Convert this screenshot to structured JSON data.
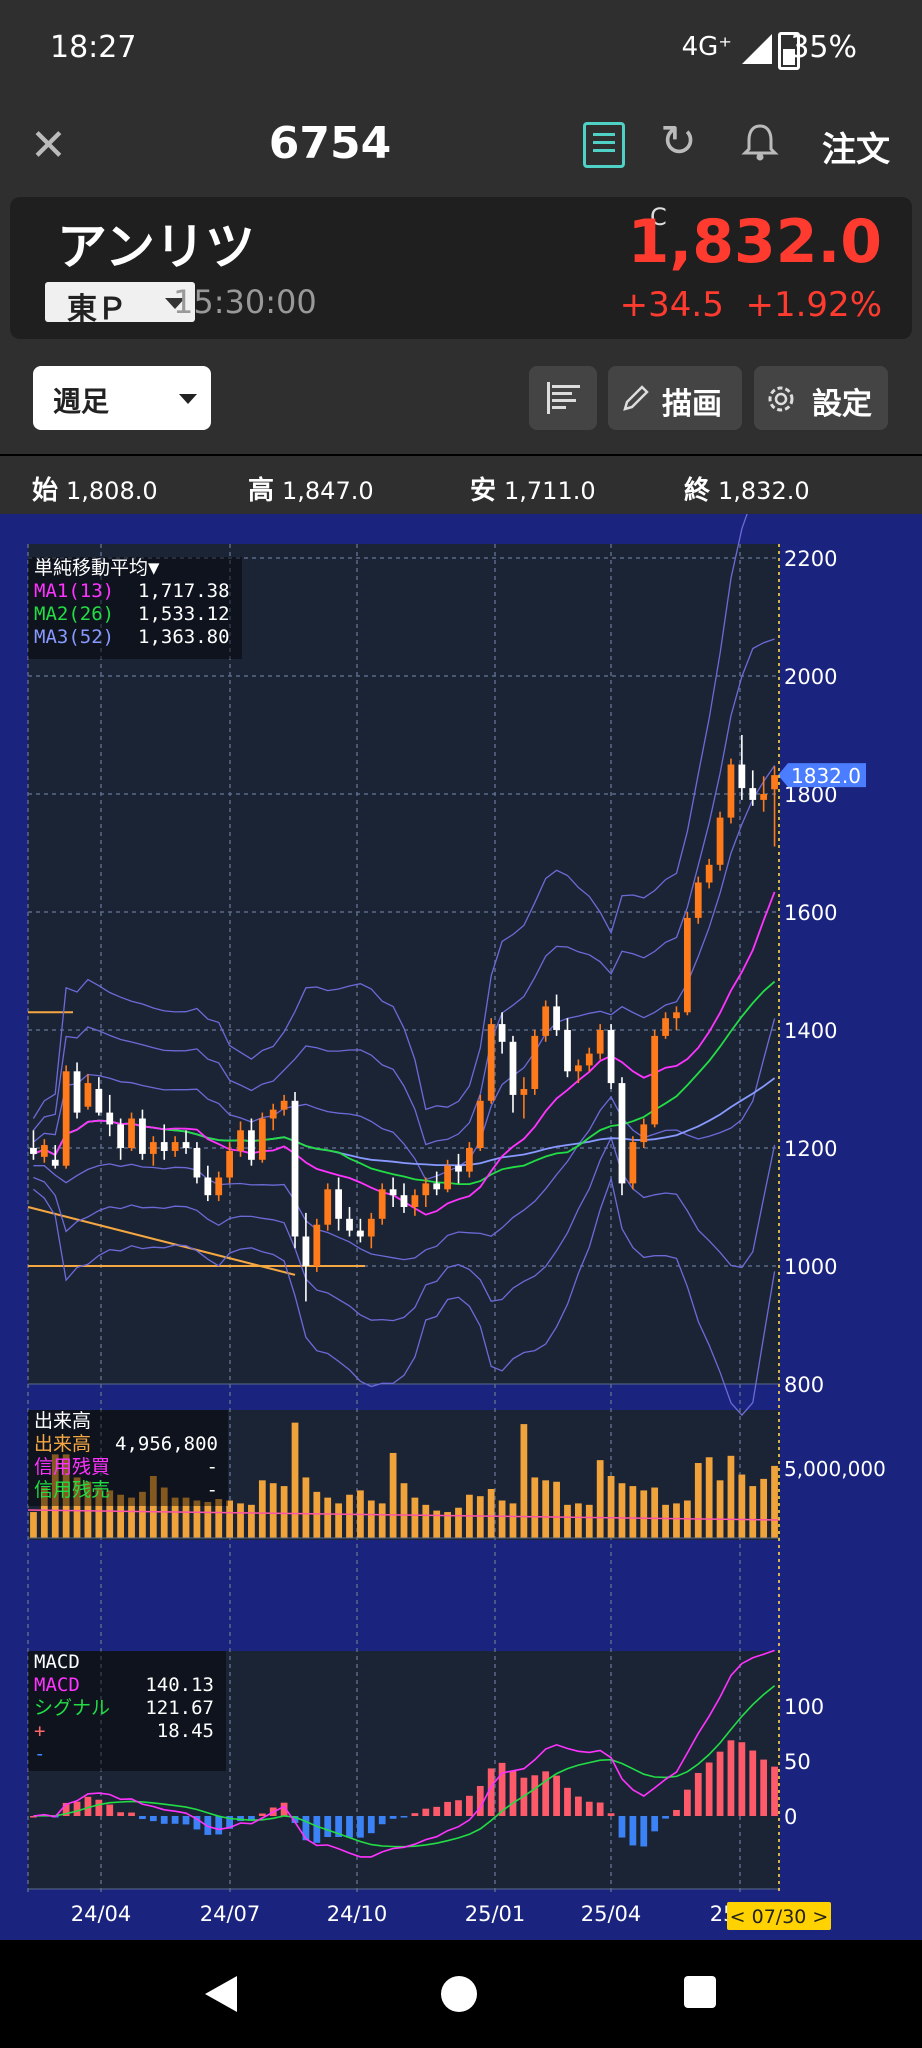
{
  "status_bar": {
    "time": "18:27",
    "network": "4G⁺",
    "battery": "35%"
  },
  "header": {
    "code": "6754",
    "order_label": "注文"
  },
  "quote": {
    "name": "アンリツ",
    "market": "東Ｐ",
    "time": "15:30:00",
    "close_marker": "C",
    "price": "1,832.0",
    "change": "+34.5",
    "change_pct": "+1.92%"
  },
  "toolbar": {
    "period": "週足",
    "draw_label": "描画",
    "settings_label": "設定"
  },
  "ohlc": [
    {
      "label": "始",
      "value": "1,808.0"
    },
    {
      "label": "高",
      "value": "1,847.0"
    },
    {
      "label": "安",
      "value": "1,711.0"
    },
    {
      "label": "終",
      "value": "1,832.0"
    }
  ],
  "ma_legend": {
    "title": "単純移動平均▼",
    "rows": [
      {
        "name": "MA1(13)",
        "value": "1,717.38",
        "color": "#ff33ff"
      },
      {
        "name": "MA2(26)",
        "value": "1,533.12",
        "color": "#22dd44"
      },
      {
        "name": "MA3(52)",
        "value": "1,363.80",
        "color": "#8899ff"
      }
    ]
  },
  "volume_legend": {
    "title": "出来高",
    "rows": [
      {
        "name": "出来高",
        "value": "4,956,800",
        "color": "#f5a742"
      },
      {
        "name": "信用残買",
        "value": "-",
        "color": "#ff33ff"
      },
      {
        "name": "信用残売",
        "value": "-",
        "color": "#22dd44"
      }
    ]
  },
  "macd_legend": {
    "title": "MACD",
    "rows": [
      {
        "name": "MACD",
        "value": "140.13",
        "color": "#ff33ff"
      },
      {
        "name": "シグナル",
        "value": "121.67",
        "color": "#22dd44"
      },
      {
        "name": "+",
        "value": "18.45",
        "color": "#ff6666"
      },
      {
        "name": "-",
        "value": "",
        "color": "#4488ff"
      }
    ]
  },
  "current_price_tag": "1832.0",
  "date_tag": "< 07/30 >",
  "price_axis": [
    2200,
    2000,
    1800,
    1600,
    1400,
    1200,
    1000,
    800
  ],
  "volume_axis_label": "5,000,000",
  "macd_axis": [
    "100",
    "50",
    "0"
  ],
  "time_axis": [
    "24/04",
    "24/07",
    "24/10",
    "25/01",
    "25/04",
    "25/07"
  ],
  "chart_data": {
    "type": "candlestick",
    "period": "weekly",
    "ylim": [
      800,
      2200
    ],
    "ohlc": [
      [
        1200,
        1230,
        1180,
        1190
      ],
      [
        1185,
        1215,
        1175,
        1205
      ],
      [
        1180,
        1205,
        1165,
        1170
      ],
      [
        1170,
        1340,
        1165,
        1330
      ],
      [
        1330,
        1345,
        1250,
        1260
      ],
      [
        1270,
        1325,
        1265,
        1310
      ],
      [
        1300,
        1320,
        1255,
        1260
      ],
      [
        1260,
        1290,
        1220,
        1240
      ],
      [
        1240,
        1250,
        1180,
        1200
      ],
      [
        1200,
        1260,
        1195,
        1250
      ],
      [
        1250,
        1265,
        1180,
        1190
      ],
      [
        1190,
        1220,
        1170,
        1210
      ],
      [
        1210,
        1240,
        1180,
        1195
      ],
      [
        1195,
        1220,
        1185,
        1210
      ],
      [
        1210,
        1230,
        1190,
        1200
      ],
      [
        1200,
        1210,
        1140,
        1150
      ],
      [
        1150,
        1170,
        1110,
        1120
      ],
      [
        1120,
        1160,
        1110,
        1150
      ],
      [
        1150,
        1210,
        1140,
        1195
      ],
      [
        1195,
        1245,
        1185,
        1230
      ],
      [
        1230,
        1250,
        1170,
        1180
      ],
      [
        1180,
        1260,
        1175,
        1250
      ],
      [
        1250,
        1275,
        1230,
        1265
      ],
      [
        1265,
        1290,
        1255,
        1280
      ],
      [
        1280,
        1295,
        1030,
        1050
      ],
      [
        1050,
        1090,
        940,
        1000
      ],
      [
        1000,
        1080,
        990,
        1070
      ],
      [
        1070,
        1140,
        1060,
        1130
      ],
      [
        1130,
        1150,
        1060,
        1080
      ],
      [
        1080,
        1100,
        1050,
        1060
      ],
      [
        1060,
        1080,
        1040,
        1050
      ],
      [
        1050,
        1090,
        1030,
        1080
      ],
      [
        1080,
        1140,
        1070,
        1130
      ],
      [
        1130,
        1150,
        1100,
        1120
      ],
      [
        1120,
        1140,
        1090,
        1100
      ],
      [
        1100,
        1130,
        1085,
        1120
      ],
      [
        1120,
        1150,
        1100,
        1140
      ],
      [
        1140,
        1160,
        1120,
        1130
      ],
      [
        1130,
        1180,
        1125,
        1170
      ],
      [
        1170,
        1190,
        1140,
        1160
      ],
      [
        1160,
        1210,
        1150,
        1200
      ],
      [
        1200,
        1290,
        1195,
        1280
      ],
      [
        1280,
        1420,
        1275,
        1410
      ],
      [
        1410,
        1430,
        1360,
        1380
      ],
      [
        1380,
        1390,
        1260,
        1290
      ],
      [
        1290,
        1320,
        1250,
        1300
      ],
      [
        1300,
        1400,
        1290,
        1390
      ],
      [
        1390,
        1450,
        1380,
        1440
      ],
      [
        1440,
        1460,
        1390,
        1400
      ],
      [
        1400,
        1420,
        1320,
        1330
      ],
      [
        1330,
        1350,
        1310,
        1340
      ],
      [
        1340,
        1370,
        1330,
        1360
      ],
      [
        1360,
        1410,
        1350,
        1400
      ],
      [
        1400,
        1410,
        1300,
        1310
      ],
      [
        1310,
        1320,
        1120,
        1140
      ],
      [
        1140,
        1220,
        1130,
        1210
      ],
      [
        1210,
        1250,
        1200,
        1240
      ],
      [
        1240,
        1400,
        1235,
        1390
      ],
      [
        1390,
        1430,
        1385,
        1420
      ],
      [
        1420,
        1440,
        1400,
        1430
      ],
      [
        1430,
        1600,
        1425,
        1590
      ],
      [
        1590,
        1660,
        1580,
        1650
      ],
      [
        1650,
        1690,
        1640,
        1680
      ],
      [
        1680,
        1770,
        1670,
        1760
      ],
      [
        1760,
        1860,
        1750,
        1850
      ],
      [
        1850,
        1900,
        1790,
        1810
      ],
      [
        1810,
        1840,
        1780,
        1790
      ],
      [
        1790,
        1830,
        1770,
        1800
      ],
      [
        1808,
        1847,
        1711,
        1832
      ]
    ],
    "volume": [
      1.8,
      3.5,
      5.8,
      5.8,
      4.2,
      3.9,
      3.5,
      3.3,
      3.0,
      2.8,
      3.2,
      4.3,
      3.5,
      2.8,
      2.8,
      2.6,
      2.5,
      2.7,
      2.6,
      2.4,
      2.3,
      4.0,
      3.8,
      3.6,
      8.0,
      4.2,
      3.2,
      2.8,
      2.4,
      3.0,
      3.3,
      2.6,
      2.4,
      5.9,
      3.8,
      2.8,
      2.3,
      1.9,
      1.8,
      2.1,
      3.0,
      2.9,
      3.4,
      2.6,
      2.4,
      7.9,
      4.2,
      4.0,
      3.9,
      2.3,
      2.4,
      2.3,
      5.4,
      4.3,
      3.8,
      3.6,
      3.3,
      3.5,
      2.3,
      2.4,
      2.6,
      5.2,
      5.6,
      4.0,
      5.7,
      4.4,
      3.6,
      4.1,
      5.0
    ],
    "macd_legend_values": {
      "macd": 140.13,
      "signal": 121.67,
      "histogram": 18.45
    },
    "ma_values": {
      "ma13": 1717.38,
      "ma26": 1533.12,
      "ma52": 1363.8
    }
  }
}
